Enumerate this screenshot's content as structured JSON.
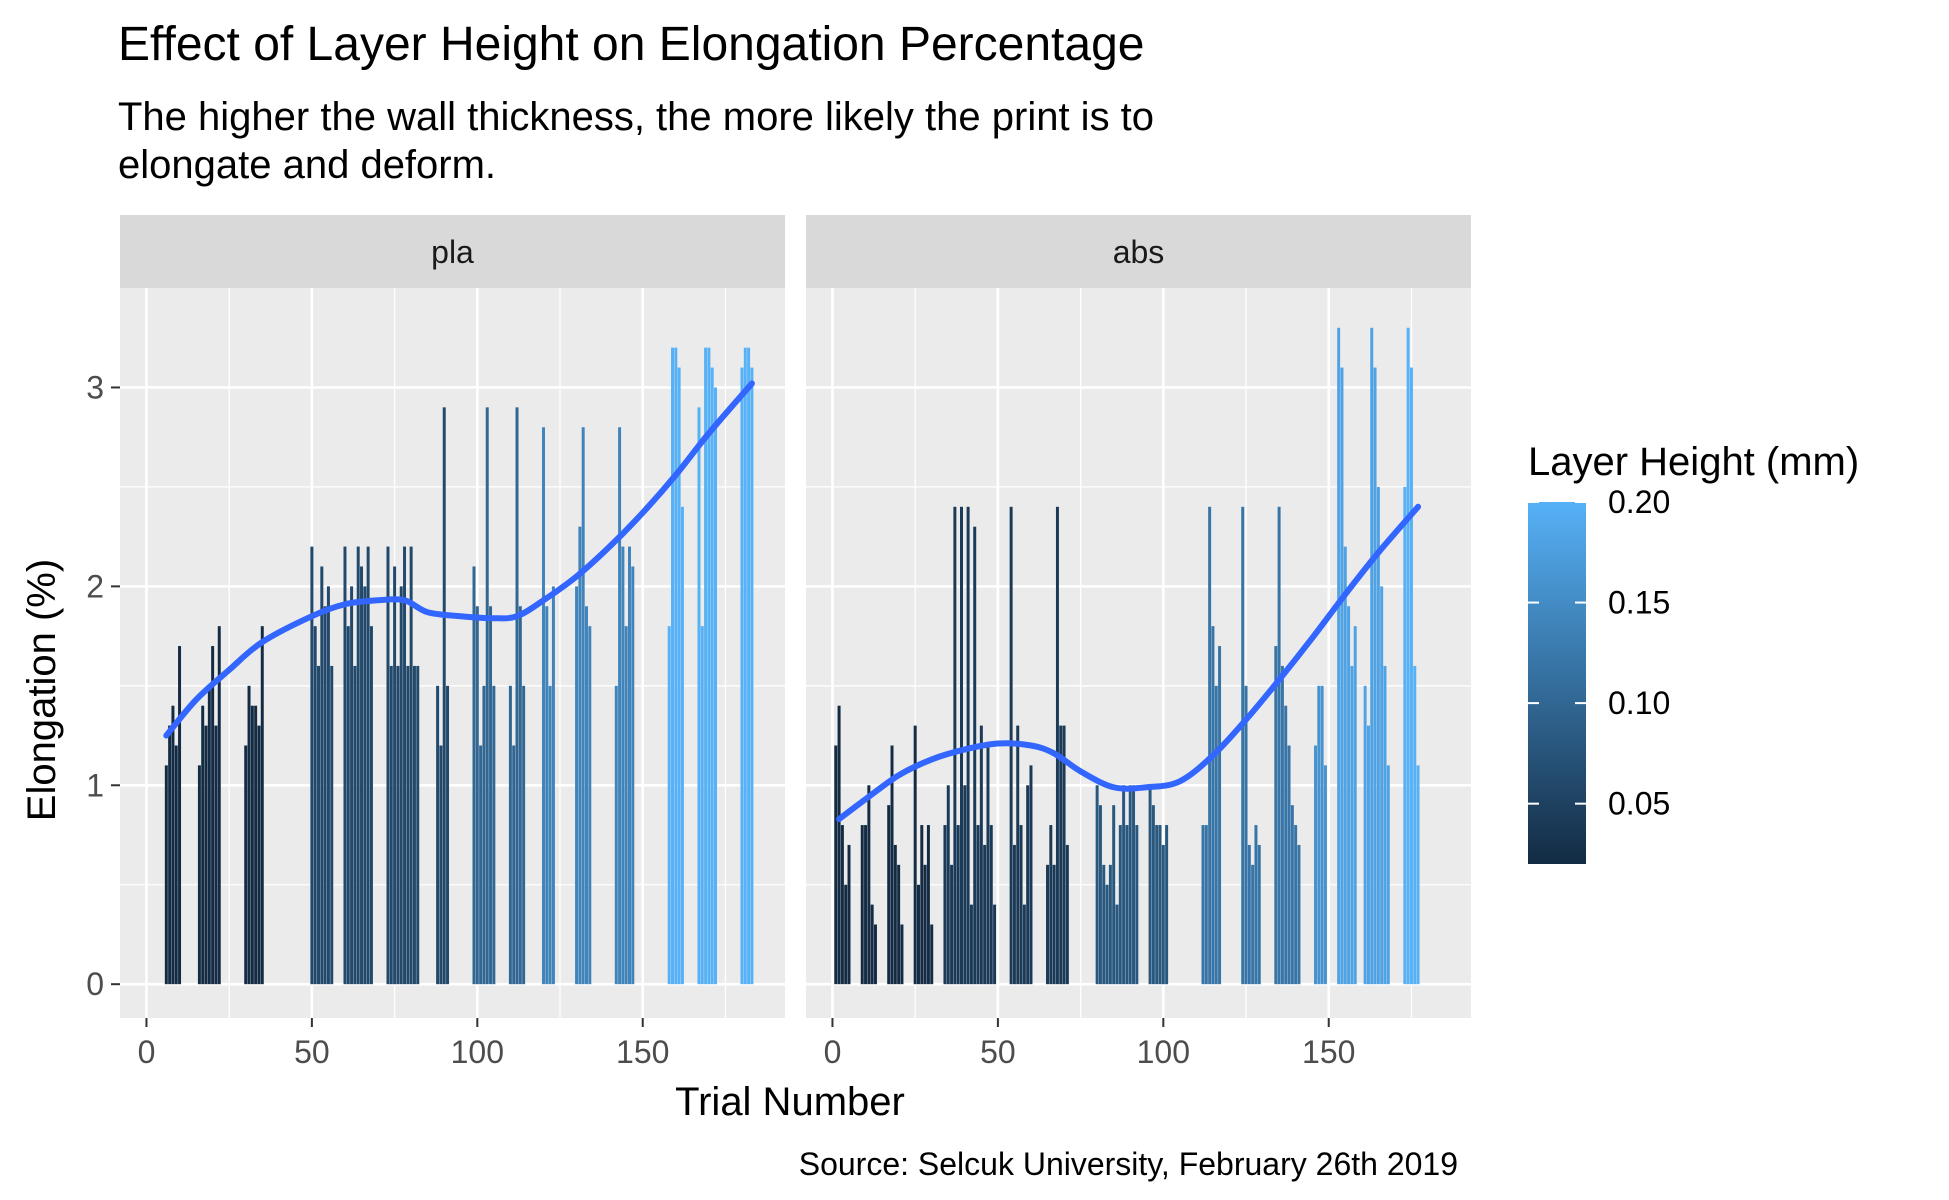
{
  "title": "Effect of Layer Height on Elongation Percentage",
  "subtitle_lines": [
    "The higher the wall thickness, the more likely the print is to",
    "elongate and deform."
  ],
  "caption": "Source: Selcuk University, February 26th 2019",
  "colors": {
    "panel_bg": "#EBEBEB",
    "strip_bg": "#D9D9D9",
    "grid": "#FFFFFF",
    "smooth_line": "#3366FF",
    "gradient_low": "#132B43",
    "gradient_high": "#56B1F7"
  },
  "chart_data": {
    "type": "bar",
    "xlabel": "Trial Number",
    "ylabel": "Elongation (%)",
    "xlim": [
      -8,
      193
    ],
    "ylim": [
      -0.17,
      3.5
    ],
    "x_ticks": [
      0,
      50,
      100,
      150
    ],
    "y_ticks": [
      0,
      1,
      2,
      3
    ],
    "grid": true,
    "legend": {
      "title": "Layer Height (mm)",
      "type": "colorbar",
      "position": "right",
      "ticks": [
        "0.05",
        "0.10",
        "0.15",
        "0.20"
      ],
      "range": [
        0.02,
        0.2
      ]
    },
    "facets": [
      {
        "label": "pla",
        "bars": [
          [
            6,
            1.1,
            0.02
          ],
          [
            7,
            1.3,
            0.02
          ],
          [
            8,
            1.4,
            0.02
          ],
          [
            9,
            1.2,
            0.02
          ],
          [
            10,
            1.7,
            0.02
          ],
          [
            16,
            1.1,
            0.02
          ],
          [
            17,
            1.4,
            0.02
          ],
          [
            18,
            1.3,
            0.02
          ],
          [
            19,
            1.5,
            0.02
          ],
          [
            20,
            1.7,
            0.02
          ],
          [
            21,
            1.3,
            0.02
          ],
          [
            22,
            1.8,
            0.02
          ],
          [
            30,
            1.2,
            0.02
          ],
          [
            31,
            1.5,
            0.02
          ],
          [
            32,
            1.4,
            0.02
          ],
          [
            33,
            1.4,
            0.02
          ],
          [
            34,
            1.3,
            0.02
          ],
          [
            35,
            1.8,
            0.02
          ],
          [
            50,
            2.2,
            0.06
          ],
          [
            51,
            1.8,
            0.06
          ],
          [
            52,
            1.6,
            0.06
          ],
          [
            53,
            2.1,
            0.06
          ],
          [
            54,
            1.9,
            0.06
          ],
          [
            55,
            2.0,
            0.06
          ],
          [
            56,
            1.6,
            0.06
          ],
          [
            60,
            2.2,
            0.06
          ],
          [
            61,
            1.8,
            0.06
          ],
          [
            62,
            2.0,
            0.06
          ],
          [
            63,
            1.6,
            0.06
          ],
          [
            64,
            2.2,
            0.06
          ],
          [
            65,
            2.1,
            0.06
          ],
          [
            66,
            2.0,
            0.06
          ],
          [
            67,
            2.2,
            0.06
          ],
          [
            68,
            1.8,
            0.06
          ],
          [
            73,
            2.2,
            0.06
          ],
          [
            74,
            1.6,
            0.06
          ],
          [
            75,
            2.1,
            0.06
          ],
          [
            76,
            1.6,
            0.06
          ],
          [
            77,
            2.0,
            0.06
          ],
          [
            78,
            2.2,
            0.06
          ],
          [
            79,
            1.6,
            0.06
          ],
          [
            80,
            2.2,
            0.06
          ],
          [
            81,
            1.6,
            0.06
          ],
          [
            82,
            1.6,
            0.06
          ],
          [
            88,
            1.5,
            0.06
          ],
          [
            89,
            1.2,
            0.06
          ],
          [
            90,
            2.9,
            0.06
          ],
          [
            91,
            1.5,
            0.06
          ],
          [
            99,
            2.1,
            0.1
          ],
          [
            100,
            1.9,
            0.1
          ],
          [
            101,
            1.2,
            0.1
          ],
          [
            102,
            1.5,
            0.1
          ],
          [
            103,
            2.9,
            0.1
          ],
          [
            104,
            1.9,
            0.1
          ],
          [
            105,
            1.5,
            0.1
          ],
          [
            110,
            1.5,
            0.1
          ],
          [
            111,
            1.2,
            0.1
          ],
          [
            112,
            2.9,
            0.1
          ],
          [
            113,
            1.9,
            0.1
          ],
          [
            114,
            1.5,
            0.1
          ],
          [
            120,
            2.8,
            0.14
          ],
          [
            121,
            1.9,
            0.14
          ],
          [
            122,
            1.5,
            0.14
          ],
          [
            123,
            2.0,
            0.14
          ],
          [
            130,
            2.0,
            0.14
          ],
          [
            131,
            2.3,
            0.14
          ],
          [
            132,
            2.8,
            0.14
          ],
          [
            133,
            1.9,
            0.14
          ],
          [
            134,
            1.8,
            0.14
          ],
          [
            142,
            1.5,
            0.14
          ],
          [
            143,
            2.8,
            0.14
          ],
          [
            144,
            2.2,
            0.14
          ],
          [
            145,
            1.8,
            0.14
          ],
          [
            146,
            2.2,
            0.14
          ],
          [
            147,
            2.1,
            0.14
          ],
          [
            158,
            1.8,
            0.2
          ],
          [
            159,
            3.2,
            0.2
          ],
          [
            160,
            3.2,
            0.2
          ],
          [
            161,
            3.1,
            0.2
          ],
          [
            162,
            2.4,
            0.2
          ],
          [
            167,
            2.9,
            0.2
          ],
          [
            168,
            1.8,
            0.2
          ],
          [
            169,
            3.2,
            0.2
          ],
          [
            170,
            3.2,
            0.2
          ],
          [
            171,
            3.1,
            0.2
          ],
          [
            172,
            3.0,
            0.2
          ],
          [
            180,
            3.1,
            0.2
          ],
          [
            181,
            3.2,
            0.2
          ],
          [
            182,
            3.2,
            0.2
          ],
          [
            183,
            3.1,
            0.2
          ]
        ],
        "smooth": [
          [
            6,
            1.25
          ],
          [
            15,
            1.43
          ],
          [
            25,
            1.58
          ],
          [
            35,
            1.72
          ],
          [
            50,
            1.85
          ],
          [
            60,
            1.91
          ],
          [
            70,
            1.93
          ],
          [
            78,
            1.93
          ],
          [
            85,
            1.87
          ],
          [
            95,
            1.85
          ],
          [
            105,
            1.84
          ],
          [
            112,
            1.85
          ],
          [
            120,
            1.93
          ],
          [
            130,
            2.05
          ],
          [
            140,
            2.2
          ],
          [
            150,
            2.37
          ],
          [
            160,
            2.56
          ],
          [
            170,
            2.77
          ],
          [
            183,
            3.02
          ]
        ]
      },
      {
        "label": "abs",
        "bars": [
          [
            1,
            1.2,
            0.02
          ],
          [
            2,
            1.4,
            0.02
          ],
          [
            3,
            0.8,
            0.02
          ],
          [
            4,
            0.5,
            0.02
          ],
          [
            5,
            0.7,
            0.02
          ],
          [
            9,
            0.8,
            0.02
          ],
          [
            10,
            0.8,
            0.02
          ],
          [
            11,
            1.0,
            0.02
          ],
          [
            12,
            0.4,
            0.02
          ],
          [
            13,
            0.3,
            0.02
          ],
          [
            17,
            0.9,
            0.02
          ],
          [
            18,
            1.2,
            0.02
          ],
          [
            19,
            0.7,
            0.02
          ],
          [
            20,
            0.6,
            0.02
          ],
          [
            21,
            0.3,
            0.02
          ],
          [
            25,
            1.3,
            0.02
          ],
          [
            26,
            0.5,
            0.02
          ],
          [
            27,
            0.8,
            0.02
          ],
          [
            28,
            0.6,
            0.02
          ],
          [
            29,
            0.8,
            0.02
          ],
          [
            30,
            0.3,
            0.02
          ],
          [
            34,
            0.8,
            0.04
          ],
          [
            35,
            1.0,
            0.04
          ],
          [
            36,
            0.6,
            0.04
          ],
          [
            37,
            2.4,
            0.04
          ],
          [
            38,
            0.8,
            0.04
          ],
          [
            39,
            2.4,
            0.04
          ],
          [
            40,
            1.0,
            0.04
          ],
          [
            41,
            2.4,
            0.04
          ],
          [
            42,
            0.4,
            0.04
          ],
          [
            43,
            2.3,
            0.04
          ],
          [
            44,
            0.8,
            0.04
          ],
          [
            45,
            1.3,
            0.04
          ],
          [
            46,
            0.7,
            0.04
          ],
          [
            47,
            1.2,
            0.04
          ],
          [
            48,
            0.8,
            0.04
          ],
          [
            49,
            0.4,
            0.04
          ],
          [
            54,
            2.4,
            0.04
          ],
          [
            55,
            0.7,
            0.04
          ],
          [
            56,
            1.3,
            0.04
          ],
          [
            57,
            0.8,
            0.04
          ],
          [
            58,
            0.4,
            0.04
          ],
          [
            59,
            1.0,
            0.04
          ],
          [
            60,
            1.1,
            0.04
          ],
          [
            65,
            0.6,
            0.04
          ],
          [
            66,
            0.8,
            0.04
          ],
          [
            67,
            0.6,
            0.04
          ],
          [
            68,
            2.4,
            0.04
          ],
          [
            69,
            1.3,
            0.04
          ],
          [
            70,
            1.3,
            0.04
          ],
          [
            71,
            0.7,
            0.04
          ],
          [
            80,
            1.0,
            0.08
          ],
          [
            81,
            0.9,
            0.08
          ],
          [
            82,
            0.6,
            0.08
          ],
          [
            83,
            0.5,
            0.08
          ],
          [
            84,
            0.6,
            0.08
          ],
          [
            85,
            0.9,
            0.08
          ],
          [
            86,
            0.4,
            0.08
          ],
          [
            87,
            0.8,
            0.08
          ],
          [
            88,
            1.0,
            0.08
          ],
          [
            89,
            0.8,
            0.08
          ],
          [
            90,
            1.0,
            0.08
          ],
          [
            91,
            1.0,
            0.08
          ],
          [
            92,
            0.8,
            0.08
          ],
          [
            96,
            1.0,
            0.08
          ],
          [
            97,
            0.9,
            0.08
          ],
          [
            98,
            0.8,
            0.08
          ],
          [
            99,
            0.8,
            0.08
          ],
          [
            100,
            0.7,
            0.08
          ],
          [
            101,
            0.8,
            0.08
          ],
          [
            112,
            0.8,
            0.12
          ],
          [
            113,
            0.8,
            0.12
          ],
          [
            114,
            2.4,
            0.12
          ],
          [
            115,
            1.8,
            0.12
          ],
          [
            116,
            1.5,
            0.12
          ],
          [
            117,
            1.7,
            0.12
          ],
          [
            124,
            2.4,
            0.12
          ],
          [
            125,
            1.5,
            0.12
          ],
          [
            126,
            0.7,
            0.12
          ],
          [
            127,
            0.6,
            0.12
          ],
          [
            128,
            0.8,
            0.12
          ],
          [
            129,
            0.7,
            0.12
          ],
          [
            134,
            1.7,
            0.12
          ],
          [
            135,
            2.4,
            0.12
          ],
          [
            136,
            1.6,
            0.12
          ],
          [
            137,
            1.4,
            0.12
          ],
          [
            138,
            1.2,
            0.12
          ],
          [
            139,
            0.9,
            0.12
          ],
          [
            140,
            0.8,
            0.12
          ],
          [
            141,
            0.7,
            0.12
          ],
          [
            146,
            1.2,
            0.16
          ],
          [
            147,
            1.5,
            0.16
          ],
          [
            148,
            1.5,
            0.16
          ],
          [
            149,
            1.1,
            0.16
          ],
          [
            153,
            3.3,
            0.18
          ],
          [
            154,
            3.1,
            0.18
          ],
          [
            155,
            2.2,
            0.18
          ],
          [
            156,
            1.9,
            0.18
          ],
          [
            157,
            1.6,
            0.18
          ],
          [
            158,
            1.8,
            0.18
          ],
          [
            161,
            1.5,
            0.18
          ],
          [
            162,
            1.3,
            0.18
          ],
          [
            163,
            3.3,
            0.18
          ],
          [
            164,
            3.1,
            0.18
          ],
          [
            165,
            2.5,
            0.18
          ],
          [
            166,
            2.0,
            0.18
          ],
          [
            167,
            1.6,
            0.18
          ],
          [
            168,
            1.1,
            0.18
          ],
          [
            173,
            2.5,
            0.2
          ],
          [
            174,
            3.3,
            0.2
          ],
          [
            175,
            3.1,
            0.2
          ],
          [
            176,
            1.6,
            0.2
          ],
          [
            177,
            1.1,
            0.2
          ]
        ],
        "smooth": [
          [
            2,
            0.83
          ],
          [
            10,
            0.93
          ],
          [
            20,
            1.05
          ],
          [
            30,
            1.13
          ],
          [
            40,
            1.18
          ],
          [
            50,
            1.21
          ],
          [
            60,
            1.2
          ],
          [
            67,
            1.16
          ],
          [
            75,
            1.07
          ],
          [
            85,
            0.99
          ],
          [
            95,
            0.99
          ],
          [
            105,
            1.02
          ],
          [
            115,
            1.15
          ],
          [
            125,
            1.33
          ],
          [
            135,
            1.53
          ],
          [
            145,
            1.74
          ],
          [
            155,
            1.96
          ],
          [
            165,
            2.17
          ],
          [
            177,
            2.4
          ]
        ]
      }
    ]
  }
}
